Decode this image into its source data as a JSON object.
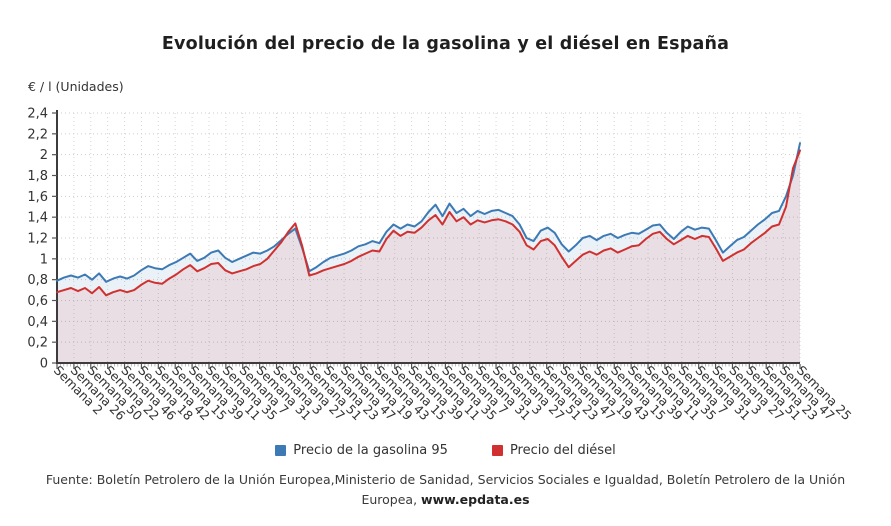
{
  "title": "Evolución del precio de la gasolina y el diésel en España",
  "y_axis_title": "€ / l (Unidades)",
  "legend": [
    {
      "label": "Precio de la gasolina 95",
      "color": "#3d7ab5"
    },
    {
      "label": "Precio del diésel",
      "color": "#d03130"
    }
  ],
  "source": {
    "text": "Fuente: Boletín Petrolero de la Unión Europea,Ministerio de Sanidad, Servicios Sociales e Igualdad, Boletín Petrolero de la Unión Europea, ",
    "link": "www.epdata.es"
  },
  "chart_data": {
    "type": "line",
    "title": "Evolución del precio de la gasolina y el diésel en España",
    "xlabel": "",
    "ylabel": "€ / l (Unidades)",
    "ylim": [
      0,
      2.4
    ],
    "ytick_step": 0.2,
    "grid": true,
    "legend_position": "bottom",
    "x_tick_labels": [
      "Semana 2",
      "Semana 26",
      "Semana 50",
      "Semana 22",
      "Semana 46",
      "Semana 18",
      "Semana 42",
      "Semana 15",
      "Semana 39",
      "Semana 11",
      "Semana 35",
      "Semana 7",
      "Semana 31",
      "Semana 3",
      "Semana 27",
      "Semana 51",
      "Semana 23",
      "Semana 47",
      "Semana 19",
      "Semana 43",
      "Semana 15",
      "Semana 39",
      "Semana 11",
      "Semana 35",
      "Semana 7",
      "Semana 31",
      "Semana 3",
      "Semana 27",
      "Semana 51",
      "Semana 23",
      "Semana 47",
      "Semana 19",
      "Semana 43",
      "Semana 15",
      "Semana 39",
      "Semana 11",
      "Semana 35",
      "Semana 7",
      "Semana 31",
      "Semana 3",
      "Semana 27",
      "Semana 51",
      "Semana 23",
      "Semana 47",
      "Semana 25"
    ],
    "series": [
      {
        "name": "Precio de la gasolina 95",
        "color": "#3d7ab5",
        "fill": "rgba(62,124,180,0.10)",
        "values": [
          0.79,
          0.82,
          0.84,
          0.82,
          0.85,
          0.8,
          0.86,
          0.78,
          0.81,
          0.83,
          0.81,
          0.84,
          0.89,
          0.93,
          0.91,
          0.9,
          0.94,
          0.97,
          1.01,
          1.05,
          0.98,
          1.01,
          1.06,
          1.08,
          1.01,
          0.97,
          1.0,
          1.03,
          1.06,
          1.05,
          1.08,
          1.12,
          1.18,
          1.24,
          1.29,
          1.1,
          0.88,
          0.92,
          0.97,
          1.01,
          1.03,
          1.05,
          1.08,
          1.12,
          1.14,
          1.17,
          1.15,
          1.26,
          1.33,
          1.29,
          1.33,
          1.31,
          1.36,
          1.45,
          1.52,
          1.41,
          1.53,
          1.44,
          1.48,
          1.41,
          1.46,
          1.43,
          1.46,
          1.47,
          1.44,
          1.41,
          1.33,
          1.2,
          1.17,
          1.27,
          1.3,
          1.25,
          1.14,
          1.07,
          1.13,
          1.2,
          1.22,
          1.18,
          1.22,
          1.24,
          1.2,
          1.23,
          1.25,
          1.24,
          1.28,
          1.32,
          1.33,
          1.25,
          1.19,
          1.26,
          1.31,
          1.28,
          1.3,
          1.29,
          1.18,
          1.06,
          1.12,
          1.18,
          1.21,
          1.27,
          1.33,
          1.38,
          1.44,
          1.46,
          1.6,
          1.8,
          2.11
        ]
      },
      {
        "name": "Precio del diésel",
        "color": "#d03130",
        "fill": "rgba(208,50,60,0.10)",
        "values": [
          0.68,
          0.7,
          0.72,
          0.69,
          0.72,
          0.67,
          0.73,
          0.65,
          0.68,
          0.7,
          0.68,
          0.7,
          0.75,
          0.79,
          0.77,
          0.76,
          0.81,
          0.85,
          0.9,
          0.94,
          0.88,
          0.91,
          0.95,
          0.96,
          0.89,
          0.86,
          0.88,
          0.9,
          0.93,
          0.95,
          1.0,
          1.08,
          1.16,
          1.26,
          1.34,
          1.12,
          0.84,
          0.86,
          0.89,
          0.91,
          0.93,
          0.95,
          0.98,
          1.02,
          1.05,
          1.08,
          1.07,
          1.19,
          1.27,
          1.22,
          1.26,
          1.25,
          1.3,
          1.37,
          1.42,
          1.33,
          1.45,
          1.36,
          1.4,
          1.33,
          1.37,
          1.35,
          1.37,
          1.38,
          1.36,
          1.33,
          1.26,
          1.13,
          1.09,
          1.17,
          1.19,
          1.13,
          1.02,
          0.92,
          0.98,
          1.04,
          1.07,
          1.04,
          1.08,
          1.1,
          1.06,
          1.09,
          1.12,
          1.13,
          1.19,
          1.24,
          1.26,
          1.19,
          1.14,
          1.18,
          1.22,
          1.19,
          1.22,
          1.21,
          1.1,
          0.98,
          1.02,
          1.06,
          1.09,
          1.15,
          1.2,
          1.25,
          1.31,
          1.33,
          1.5,
          1.87,
          2.04
        ]
      }
    ]
  }
}
